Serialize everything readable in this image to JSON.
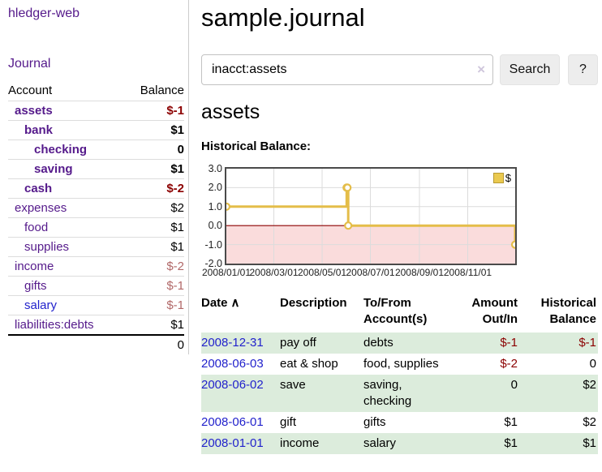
{
  "app": {
    "title": "hledger-web"
  },
  "sidebar": {
    "journal_label": "Journal",
    "accounts": {
      "header": {
        "account": "Account",
        "balance": "Balance"
      },
      "rows": [
        {
          "name": "assets",
          "balance": "$-1",
          "depth": 0,
          "bold": true,
          "bal": "red",
          "link": "purple"
        },
        {
          "name": "bank",
          "balance": "$1",
          "depth": 1,
          "bold": true,
          "bal": "black",
          "link": "purple"
        },
        {
          "name": "checking",
          "balance": "0",
          "depth": 2,
          "bold": true,
          "bal": "black",
          "link": "purple"
        },
        {
          "name": "saving",
          "balance": "$1",
          "depth": 2,
          "bold": true,
          "bal": "black",
          "link": "purple"
        },
        {
          "name": "cash",
          "balance": "$-2",
          "depth": 1,
          "bold": true,
          "bal": "red",
          "link": "purple"
        },
        {
          "name": "expenses",
          "balance": "$2",
          "depth": 0,
          "bold": false,
          "bal": "black",
          "link": "purple"
        },
        {
          "name": "food",
          "balance": "$1",
          "depth": 1,
          "bold": false,
          "bal": "black",
          "link": "purple"
        },
        {
          "name": "supplies",
          "balance": "$1",
          "depth": 1,
          "bold": false,
          "bal": "black",
          "link": "purple"
        },
        {
          "name": "income",
          "balance": "$-2",
          "depth": 0,
          "bold": false,
          "bal": "rose",
          "link": "purple"
        },
        {
          "name": "gifts",
          "balance": "$-1",
          "depth": 1,
          "bold": false,
          "bal": "rose",
          "link": "purple"
        },
        {
          "name": "salary",
          "balance": "$-1",
          "depth": 1,
          "bold": false,
          "bal": "rose",
          "link": "blue"
        },
        {
          "name": "liabilities:debts",
          "balance": "$1",
          "depth": 0,
          "bold": false,
          "bal": "black",
          "link": "purple"
        }
      ],
      "total": "0"
    }
  },
  "main": {
    "title": "sample.journal",
    "search": {
      "value": "inacct:assets",
      "clear_icon": "×",
      "button_label": "Search",
      "help_label": "?"
    },
    "account_heading": "assets",
    "chart_label": "Historical Balance:"
  },
  "chart_data": {
    "type": "line",
    "step": true,
    "title": "Historical Balance",
    "legend_label": "$",
    "legend_position": "top-right",
    "x": [
      "2008-01-01",
      "2008-06-01",
      "2008-06-02",
      "2008-06-03",
      "2008-12-31"
    ],
    "values": [
      1,
      2,
      2,
      0,
      -1
    ],
    "xlim": [
      "2008-01-01",
      "2008-12-31"
    ],
    "ylim": [
      -2,
      3
    ],
    "yticks": [
      3,
      2,
      1,
      0,
      -1,
      -2
    ],
    "ytick_labels": [
      "3.0",
      "2.0",
      "1.0",
      "0.0",
      "-1.0",
      "-2.0"
    ],
    "xtick_dates": [
      "2008-01-01",
      "2008-03-01",
      "2008-05-01",
      "2008-07-01",
      "2008-09-01",
      "2008-11-01"
    ],
    "xtick_labels": [
      "2008/01/01",
      "2008/03/01",
      "2008/05/01",
      "2008/07/01",
      "2008/09/01",
      "2008/11/01"
    ],
    "grid": true,
    "colors": {
      "line": "#e4bd49",
      "marker_fill": "#ffffff",
      "negative_fill": "#fadcdc",
      "zero_line": "#8b0000",
      "grid": "#dcdcdc",
      "legend_swatch": "#eac94f",
      "border": "#4a4a4a"
    }
  },
  "register": {
    "headers": [
      {
        "label": "Date",
        "sort": "∧",
        "align": "left"
      },
      {
        "label": "Description",
        "align": "left"
      },
      {
        "label": "To/From Account(s)",
        "align": "left"
      },
      {
        "label": "Amount Out/In",
        "align": "right"
      },
      {
        "label": "Historical Balance",
        "align": "right"
      }
    ],
    "rows": [
      {
        "date": "2008-12-31",
        "description": "pay off",
        "accounts": "debts",
        "amount": "$-1",
        "balance": "$-1",
        "amount_neg": true,
        "balance_neg": true
      },
      {
        "date": "2008-06-03",
        "description": "eat & shop",
        "accounts": "food, supplies",
        "amount": "$-2",
        "balance": "0",
        "amount_neg": true,
        "balance_neg": false
      },
      {
        "date": "2008-06-02",
        "description": "save",
        "accounts": "saving, checking",
        "amount": "0",
        "balance": "$2",
        "amount_neg": false,
        "balance_neg": false
      },
      {
        "date": "2008-06-01",
        "description": "gift",
        "accounts": "gifts",
        "amount": "$1",
        "balance": "$2",
        "amount_neg": false,
        "balance_neg": false
      },
      {
        "date": "2008-01-01",
        "description": "income",
        "accounts": "salary",
        "amount": "$1",
        "balance": "$1",
        "amount_neg": false,
        "balance_neg": false
      }
    ]
  }
}
